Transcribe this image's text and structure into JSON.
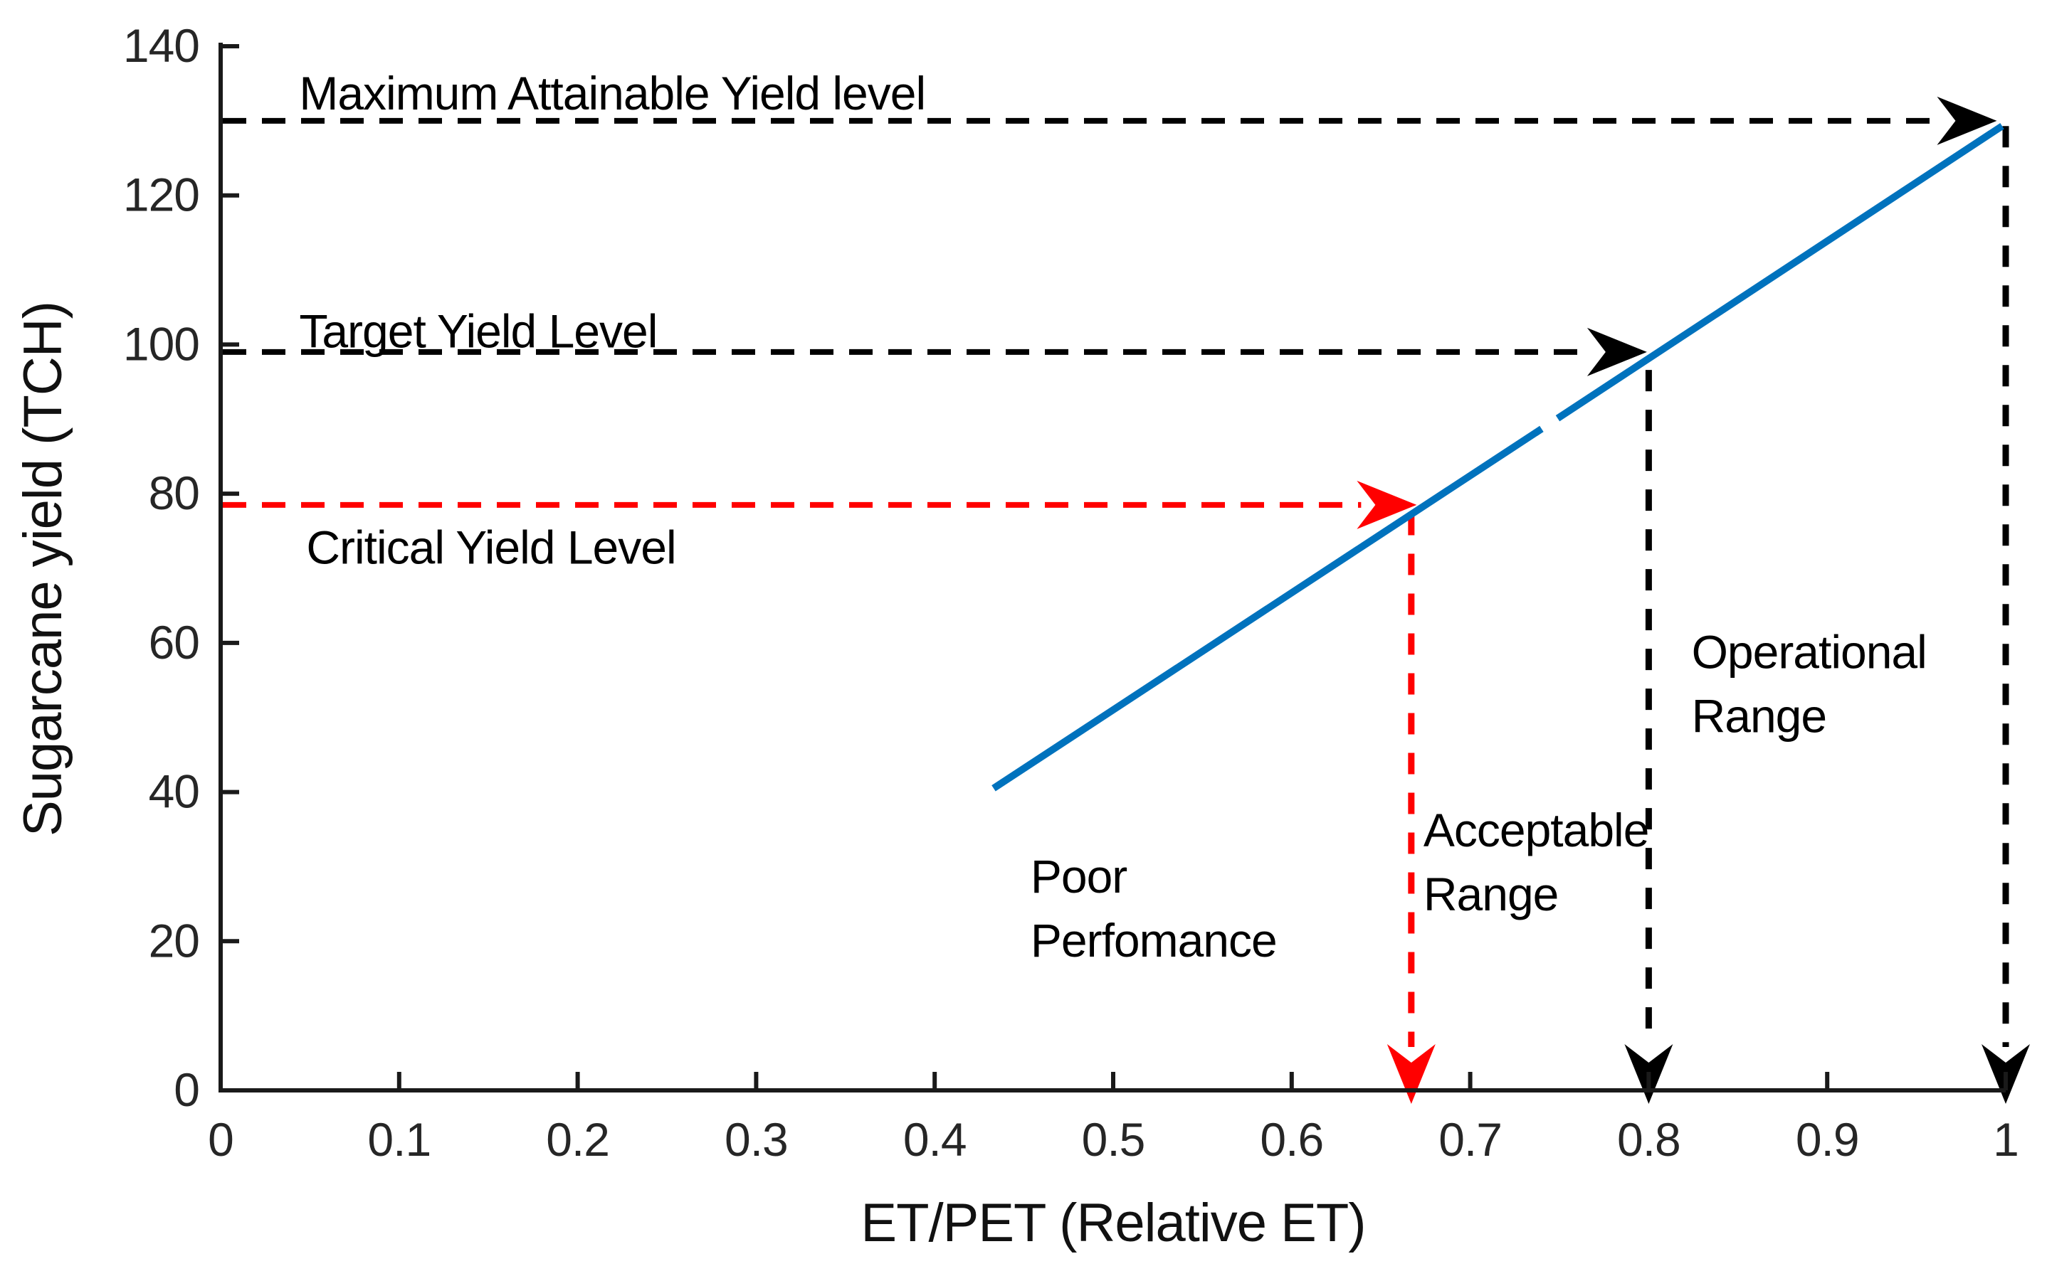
{
  "chart_data": {
    "type": "line",
    "title": "",
    "xlabel": "ET/PET (Relative ET)",
    "ylabel": "Sugarcane yield (TCH)",
    "xlim": [
      0,
      1
    ],
    "ylim": [
      0,
      140
    ],
    "grid": false,
    "legend": "none",
    "xticks": {
      "values": [
        0,
        0.1,
        0.2,
        0.3,
        0.4,
        0.5,
        0.6,
        0.7,
        0.8,
        0.9,
        1
      ],
      "labels": [
        "0",
        "0.1",
        "0.2",
        "0.3",
        "0.4",
        "0.5",
        "0.6",
        "0.7",
        "0.8",
        "0.9",
        "1"
      ]
    },
    "yticks": {
      "values": [
        0,
        20,
        40,
        60,
        80,
        100,
        120,
        140
      ],
      "labels": [
        "0",
        "20",
        "40",
        "60",
        "80",
        "100",
        "120",
        "140"
      ]
    },
    "series": [
      {
        "name": "sugarcane-yield-line",
        "color": "#0072BD",
        "style": "solid",
        "segments": [
          [
            [
              0.433,
              40.5
            ],
            [
              0.74,
              88.7
            ]
          ],
          [
            [
              0.749,
              90.1
            ],
            [
              0.998,
              129.3
            ]
          ]
        ]
      }
    ],
    "reference_lines": [
      {
        "name": "maximum-attainable-yield-line",
        "label": "Maximum Attainable Yield level",
        "y": 130,
        "x_start": 0,
        "x_end": 0.995,
        "color": "#000000",
        "label_color": "#000000",
        "label_x": 0.044,
        "label_y": 131.5,
        "arrow": "right"
      },
      {
        "name": "target-yield-line",
        "label": "Target Yield Level",
        "y": 99,
        "x_start": 0,
        "x_end": 0.799,
        "color": "#000000",
        "label_color": "#000000",
        "label_x": 0.044,
        "label_y": 99.6,
        "arrow": "right"
      },
      {
        "name": "critical-yield-line",
        "label": "Critical Yield Level",
        "y": 78.5,
        "x_start": 0,
        "x_end": 0.67,
        "color": "#FF0000",
        "label_color": "#000000",
        "label_x": 0.048,
        "label_y": 70.6,
        "arrow": "right"
      }
    ],
    "drop_lines": [
      {
        "name": "critical-x-drop-line",
        "x": 0.667,
        "y_top": 77.3,
        "color": "#FF0000",
        "arrow": "down"
      },
      {
        "name": "target-x-drop-line",
        "x": 0.8,
        "y_top": 96.6,
        "color": "#000000",
        "arrow": "down"
      },
      {
        "name": "max-x-drop-line",
        "x": 1.0,
        "y_top": 129.3,
        "color": "#000000",
        "arrow": "down"
      }
    ],
    "annotations": [
      {
        "name": "poor-performance-label",
        "lines": [
          "Poor",
          "Perfomance"
        ],
        "x": 0.4537,
        "y": 26.5
      },
      {
        "name": "acceptable-range-label",
        "lines": [
          "Acceptable",
          "Range"
        ],
        "x": 0.6738,
        "y": 32.7
      },
      {
        "name": "operational-range-label",
        "lines": [
          "Operational",
          "Range"
        ],
        "x": 0.824,
        "y": 56.6
      }
    ]
  }
}
